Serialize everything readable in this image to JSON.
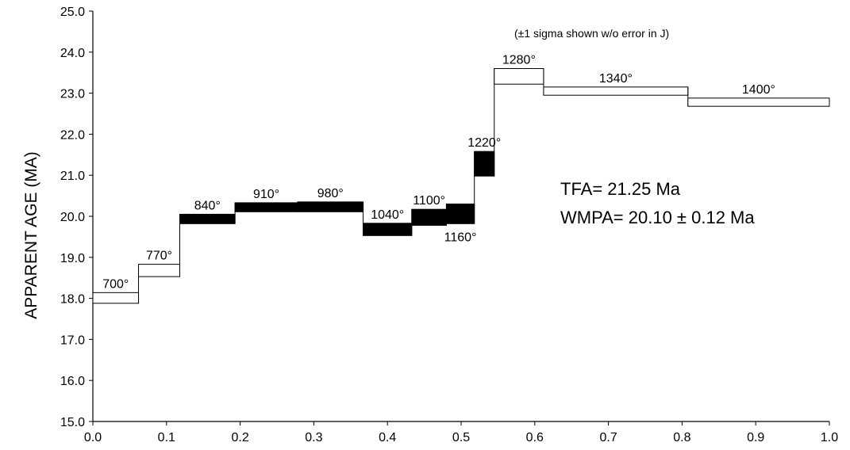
{
  "chart_data": {
    "type": "step",
    "ylabel": "APPARENT AGE (MA)",
    "xlabel": "",
    "xlim": [
      0.0,
      1.0
    ],
    "ylim": [
      15.0,
      25.0
    ],
    "x_tick_labels": [
      "0.0",
      "0.1",
      "0.2",
      "0.3",
      "0.4",
      "0.5",
      "0.6",
      "0.7",
      "0.8",
      "0.9",
      "1.0"
    ],
    "y_tick_labels": [
      "15.0",
      "16.0",
      "17.0",
      "18.0",
      "19.0",
      "20.0",
      "21.0",
      "22.0",
      "23.0",
      "24.0",
      "25.0"
    ],
    "note": "(±1 sigma shown w/o error in J)",
    "tfa_text": "TFA= 21.25 Ma",
    "wmpa_text": "WMPA= 20.10 ± 0.12 Ma",
    "fill_colors": {
      "plateau": "#000000",
      "other": "#ffffff"
    },
    "steps": [
      {
        "label": "700°",
        "x0": 0.0,
        "x1": 0.062,
        "ylow": 17.88,
        "yhigh": 18.14,
        "plateau": false,
        "label_pos": "above"
      },
      {
        "label": "770°",
        "x0": 0.062,
        "x1": 0.118,
        "ylow": 18.53,
        "yhigh": 18.83,
        "plateau": false,
        "label_pos": "above"
      },
      {
        "label": "840°",
        "x0": 0.118,
        "x1": 0.193,
        "ylow": 19.82,
        "yhigh": 20.05,
        "plateau": true,
        "label_pos": "above"
      },
      {
        "label": "910°",
        "x0": 0.193,
        "x1": 0.278,
        "ylow": 20.11,
        "yhigh": 20.33,
        "plateau": true,
        "label_pos": "above"
      },
      {
        "label": "980°",
        "x0": 0.278,
        "x1": 0.367,
        "ylow": 20.11,
        "yhigh": 20.35,
        "plateau": true,
        "label_pos": "above"
      },
      {
        "label": "1040°",
        "x0": 0.367,
        "x1": 0.433,
        "ylow": 19.53,
        "yhigh": 19.83,
        "plateau": true,
        "label_pos": "above"
      },
      {
        "label": "1100°",
        "x0": 0.433,
        "x1": 0.48,
        "ylow": 19.78,
        "yhigh": 20.17,
        "plateau": true,
        "label_pos": "above"
      },
      {
        "label": "1160°",
        "x0": 0.48,
        "x1": 0.518,
        "ylow": 19.82,
        "yhigh": 20.3,
        "plateau": true,
        "label_pos": "below"
      },
      {
        "label": "1220°",
        "x0": 0.518,
        "x1": 0.545,
        "ylow": 20.98,
        "yhigh": 21.58,
        "plateau": true,
        "label_pos": "above"
      },
      {
        "label": "1280°",
        "x0": 0.545,
        "x1": 0.612,
        "ylow": 23.22,
        "yhigh": 23.6,
        "plateau": false,
        "label_pos": "above"
      },
      {
        "label": "1340°",
        "x0": 0.612,
        "x1": 0.808,
        "ylow": 22.95,
        "yhigh": 23.15,
        "plateau": false,
        "label_pos": "above"
      },
      {
        "label": "1400°",
        "x0": 0.808,
        "x1": 1.0,
        "ylow": 22.68,
        "yhigh": 22.88,
        "plateau": false,
        "label_pos": "above"
      }
    ]
  }
}
